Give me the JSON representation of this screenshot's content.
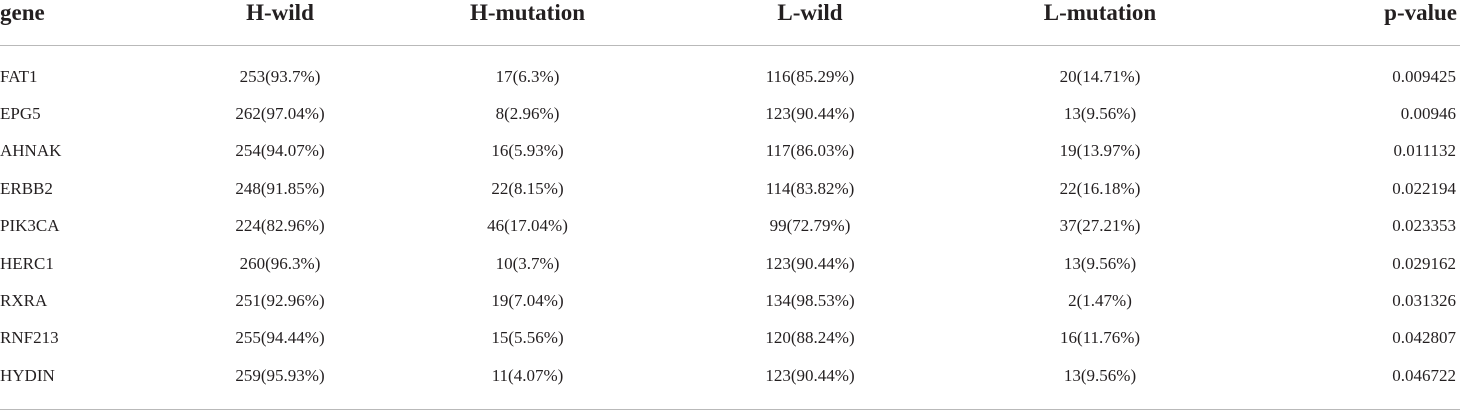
{
  "table": {
    "headers": [
      "gene",
      "H-wild",
      "H-mutation",
      "L-wild",
      "L-mutation",
      "p-value"
    ],
    "rows": [
      [
        "FAT1",
        "253(93.7%)",
        "17(6.3%)",
        "116(85.29%)",
        "20(14.71%)",
        "0.009425"
      ],
      [
        "EPG5",
        "262(97.04%)",
        "8(2.96%)",
        "123(90.44%)",
        "13(9.56%)",
        "0.00946"
      ],
      [
        "AHNAK",
        "254(94.07%)",
        "16(5.93%)",
        "117(86.03%)",
        "19(13.97%)",
        "0.011132"
      ],
      [
        "ERBB2",
        "248(91.85%)",
        "22(8.15%)",
        "114(83.82%)",
        "22(16.18%)",
        "0.022194"
      ],
      [
        "PIK3CA",
        "224(82.96%)",
        "46(17.04%)",
        "99(72.79%)",
        "37(27.21%)",
        "0.023353"
      ],
      [
        "HERC1",
        "260(96.3%)",
        "10(3.7%)",
        "123(90.44%)",
        "13(9.56%)",
        "0.029162"
      ],
      [
        "RXRA",
        "251(92.96%)",
        "19(7.04%)",
        "134(98.53%)",
        "2(1.47%)",
        "0.031326"
      ],
      [
        "RNF213",
        "255(94.44%)",
        "15(5.56%)",
        "120(88.24%)",
        "16(11.76%)",
        "0.042807"
      ],
      [
        "HYDIN",
        "259(95.93%)",
        "11(4.07%)",
        "123(90.44%)",
        "13(9.56%)",
        "0.046722"
      ]
    ]
  },
  "colors": {
    "text": "#231f20",
    "rule": "#b9b9b9",
    "background": "#ffffff"
  }
}
